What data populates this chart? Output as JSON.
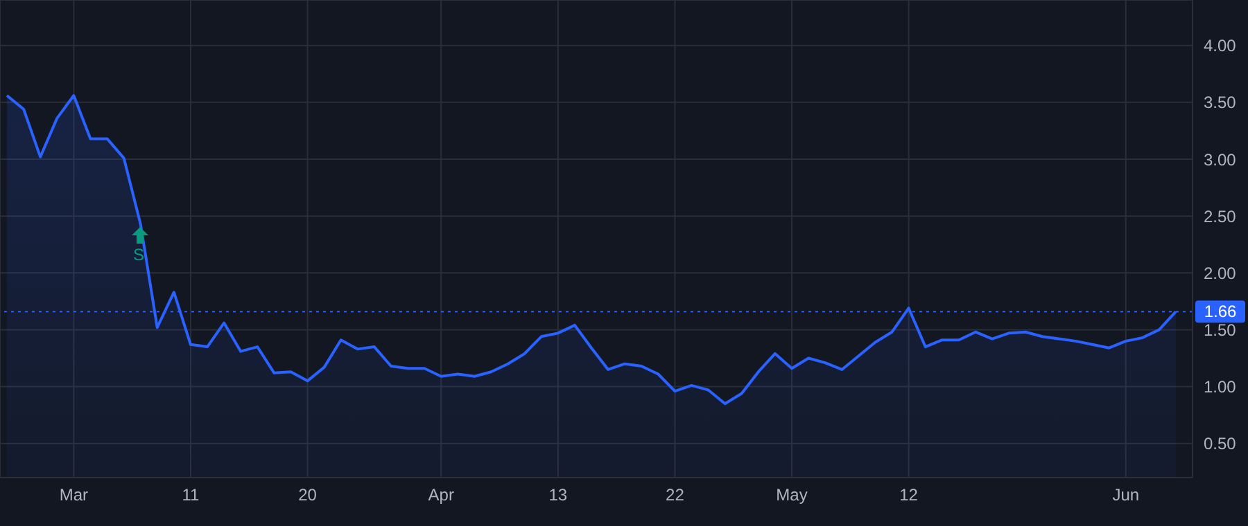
{
  "chart_data": {
    "type": "area",
    "categories": [
      null,
      null,
      null,
      null,
      "Mar",
      null,
      null,
      null,
      null,
      null,
      null,
      "11",
      null,
      null,
      null,
      null,
      null,
      null,
      "20",
      null,
      null,
      null,
      null,
      null,
      null,
      null,
      "Apr",
      null,
      null,
      null,
      null,
      null,
      null,
      "13",
      null,
      null,
      null,
      null,
      null,
      null,
      "22",
      null,
      null,
      null,
      null,
      null,
      null,
      "May",
      null,
      null,
      null,
      null,
      null,
      null,
      "12",
      null,
      null,
      null,
      null,
      null,
      null,
      null,
      null,
      null,
      null,
      null,
      null,
      "Jun",
      null,
      null,
      null
    ],
    "series": [
      {
        "color": "#2962ff",
        "values": [
          3.56,
          3.44,
          3.02,
          3.36,
          3.56,
          3.18,
          3.18,
          3.01,
          2.43,
          1.52,
          1.83,
          1.37,
          1.35,
          1.56,
          1.31,
          1.35,
          1.12,
          1.13,
          1.05,
          1.17,
          1.41,
          1.33,
          1.35,
          1.18,
          1.16,
          1.16,
          1.09,
          1.11,
          1.09,
          1.13,
          1.2,
          1.29,
          1.44,
          1.47,
          1.54,
          1.34,
          1.15,
          1.2,
          1.18,
          1.11,
          0.96,
          1.01,
          0.97,
          0.85,
          0.94,
          1.13,
          1.29,
          1.16,
          1.25,
          1.21,
          1.15,
          1.27,
          1.39,
          1.48,
          1.69,
          1.35,
          1.41,
          1.41,
          1.48,
          1.42,
          1.47,
          1.48,
          1.44,
          1.42,
          1.4,
          1.37,
          1.34,
          1.4,
          1.43,
          1.5,
          1.66
        ]
      }
    ],
    "ylim": [
      0.2,
      4.4
    ],
    "yticks": [
      {
        "value": 0.5,
        "label": "0.50"
      },
      {
        "value": 1,
        "label": "1.00"
      },
      {
        "value": 1.5,
        "label": "1.50"
      },
      {
        "value": 2,
        "label": "2.00"
      },
      {
        "value": 2.5,
        "label": "2.50"
      },
      {
        "value": 3,
        "label": "3.00"
      },
      {
        "value": 3.5,
        "label": "3.50"
      },
      {
        "value": 4,
        "label": "4.00"
      }
    ],
    "grid": true,
    "marker": "none",
    "line_style": "solid",
    "ref_lines": [
      {
        "axis": "y",
        "value": 1.66,
        "label": "1.66",
        "color": "#2962ff",
        "line_style": "dotted"
      }
    ],
    "annotations": [
      "S"
    ]
  }
}
